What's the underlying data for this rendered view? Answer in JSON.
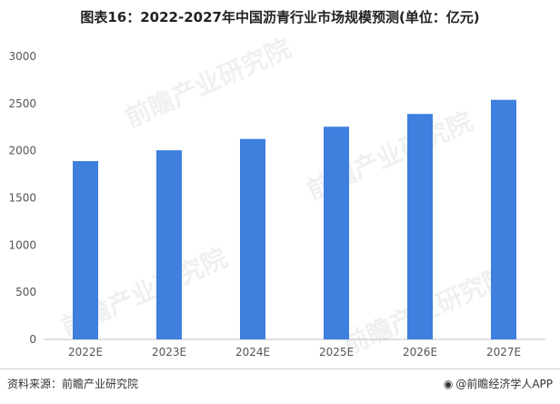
{
  "title": "图表16：2022-2027年中国沥青行业市场规模预测(单位：亿元)",
  "footer": {
    "source": "资料来源：前瞻产业研究院",
    "brand": "@前瞻经济学人APP",
    "brand_icon": "wechat-icon"
  },
  "watermark": "前瞻产业研究院",
  "colors": {
    "bar": "#3f7fde",
    "axis": "#bfbfbf",
    "text": "#555555"
  },
  "chart_data": {
    "type": "bar",
    "title": "图表16：2022-2027年中国沥青行业市场规模预测(单位：亿元)",
    "xlabel": "",
    "ylabel": "",
    "categories": [
      "2022E",
      "2023E",
      "2024E",
      "2025E",
      "2026E",
      "2027E"
    ],
    "values": [
      1890,
      2005,
      2125,
      2255,
      2390,
      2540
    ],
    "ylim": [
      0,
      3000
    ],
    "yticks": [
      0,
      500,
      1000,
      1500,
      2000,
      2500,
      3000
    ],
    "grid": false,
    "legend": "none"
  }
}
